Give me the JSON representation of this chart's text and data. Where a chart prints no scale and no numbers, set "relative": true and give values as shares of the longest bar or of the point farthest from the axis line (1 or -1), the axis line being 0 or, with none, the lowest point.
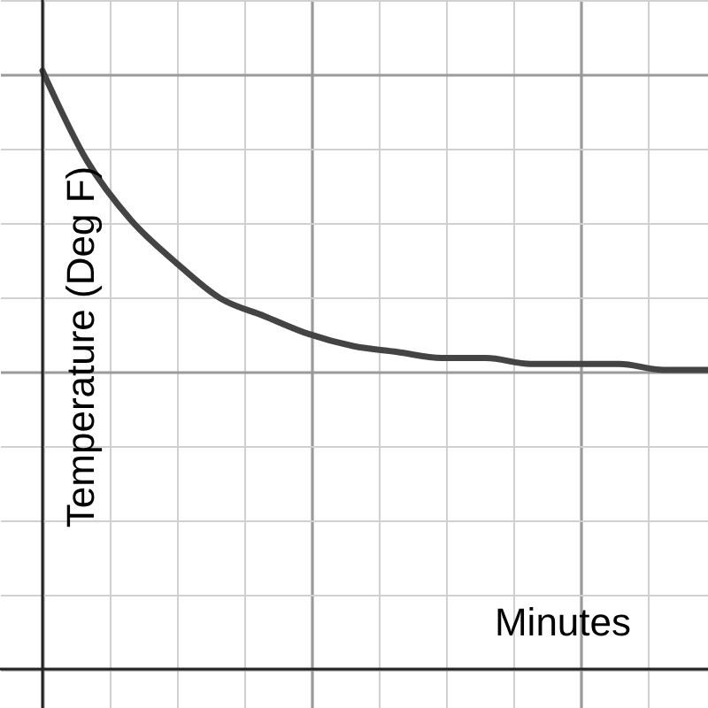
{
  "chart_data": {
    "type": "line",
    "relative": true,
    "xlabel": "Minutes",
    "ylabel": "Temperature (Deg F)",
    "categories": [
      null,
      null,
      null,
      null,
      null,
      null,
      null,
      null,
      null,
      null,
      null,
      null,
      null,
      null,
      null,
      null
    ],
    "series": [
      {
        "color": "#444444",
        "values": [
          1,
          0.85,
          0.75,
          0.68,
          0.62,
          0.59,
          0.56,
          0.54,
          0.53,
          0.52,
          0.52,
          0.51,
          0.51,
          0.51,
          0.5,
          0.5
        ]
      }
    ],
    "grid": true,
    "marker": "none",
    "line_style": "solid"
  }
}
